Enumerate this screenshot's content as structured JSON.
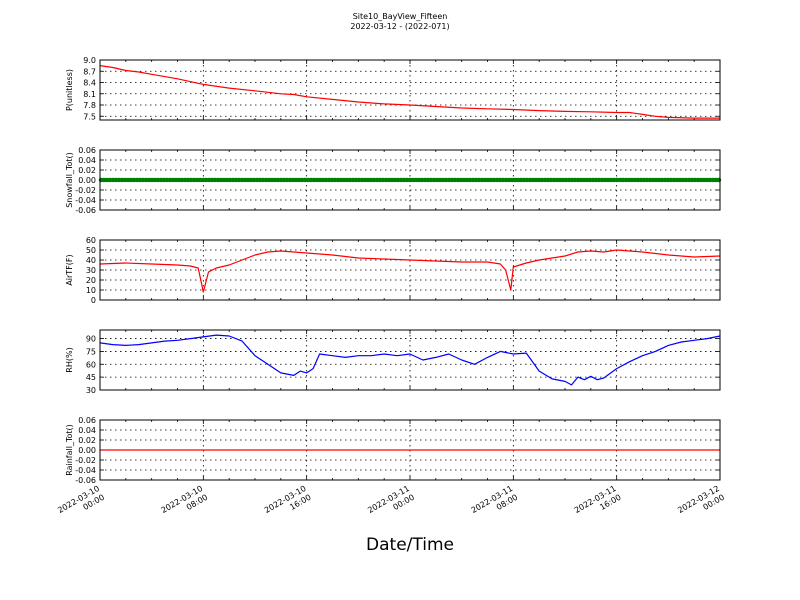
{
  "title_line1": "Site10_BayView_Fifteen",
  "title_line2": "2022-03-12 - (2022-071)",
  "xlabel": "Date/Time",
  "x_ticks": [
    {
      "value": 0,
      "line1": "2022-03-10",
      "line2": "00:00"
    },
    {
      "value": 8,
      "line1": "2022-03-10",
      "line2": "08:00"
    },
    {
      "value": 16,
      "line1": "2022-03-10",
      "line2": "16:00"
    },
    {
      "value": 24,
      "line1": "2022-03-11",
      "line2": "00:00"
    },
    {
      "value": 32,
      "line1": "2022-03-11",
      "line2": "08:00"
    },
    {
      "value": 40,
      "line1": "2022-03-11",
      "line2": "16:00"
    },
    {
      "value": 48,
      "line1": "2022-03-12",
      "line2": "00:00"
    }
  ],
  "chart_data": [
    {
      "type": "line",
      "ylabel": "P(unitless)",
      "ylim": [
        7.4,
        9.0
      ],
      "yticks": [
        "9.0",
        "8.7",
        "8.4",
        "8.1",
        "7.8",
        "7.5"
      ],
      "ytick_values": [
        9.0,
        8.7,
        8.4,
        8.1,
        7.8,
        7.5
      ],
      "grid": true,
      "series": [
        {
          "color": "#ff0000",
          "x": [
            0,
            1,
            2,
            3,
            4,
            6,
            8,
            10,
            12,
            14,
            15,
            16,
            18,
            20,
            22,
            24,
            26,
            28,
            30,
            32,
            34,
            36,
            38,
            40,
            41,
            42,
            43,
            44,
            46,
            48
          ],
          "y": [
            8.85,
            8.8,
            8.72,
            8.68,
            8.62,
            8.5,
            8.35,
            8.25,
            8.18,
            8.1,
            8.08,
            8.02,
            7.95,
            7.88,
            7.83,
            7.8,
            7.76,
            7.72,
            7.7,
            7.68,
            7.65,
            7.63,
            7.62,
            7.6,
            7.6,
            7.55,
            7.5,
            7.47,
            7.45,
            7.45
          ]
        }
      ]
    },
    {
      "type": "line",
      "ylabel": "Snowfall_Tot()",
      "ylim": [
        -0.06,
        0.06
      ],
      "yticks": [
        "0.06",
        "0.04",
        "0.02",
        "0.00",
        "-0.02",
        "-0.04",
        "-0.06"
      ],
      "ytick_values": [
        0.06,
        0.04,
        0.02,
        0.0,
        -0.02,
        -0.04,
        -0.06
      ],
      "grid": true,
      "series": [
        {
          "color": "#008000",
          "marker": true,
          "x": [
            0,
            48
          ],
          "y": [
            0,
            0
          ]
        }
      ]
    },
    {
      "type": "line",
      "ylabel": "AirTF(F)",
      "ylim": [
        0,
        60
      ],
      "yticks": [
        "60",
        "50",
        "40",
        "30",
        "20",
        "10",
        "0"
      ],
      "ytick_values": [
        60,
        50,
        40,
        30,
        20,
        10,
        0
      ],
      "grid": true,
      "series": [
        {
          "color": "#ff0000",
          "x": [
            0,
            2,
            4,
            6,
            7,
            7.6,
            7.8,
            8.0,
            8.4,
            9,
            10,
            11,
            12,
            13,
            14,
            15,
            16,
            18,
            20,
            22,
            24,
            26,
            28,
            30,
            31,
            31.4,
            31.8,
            32,
            33,
            34,
            36,
            37,
            38,
            39,
            40,
            41,
            42,
            44,
            46,
            48
          ],
          "y": [
            36,
            37,
            36,
            35,
            34,
            32,
            20,
            8,
            28,
            32,
            35,
            40,
            45,
            48,
            49,
            48,
            47,
            45,
            42,
            41,
            40,
            39,
            38,
            38,
            36,
            30,
            10,
            33,
            37,
            40,
            44,
            48,
            49,
            48,
            50,
            49,
            48,
            45,
            43,
            44
          ]
        }
      ]
    },
    {
      "type": "line",
      "ylabel": "RH(%)",
      "ylim": [
        30,
        100
      ],
      "yticks": [
        "90",
        "75",
        "60",
        "45",
        "30"
      ],
      "ytick_values": [
        90,
        75,
        60,
        45,
        30
      ],
      "grid": true,
      "series": [
        {
          "color": "#0000ff",
          "x": [
            0,
            1,
            2,
            3,
            4,
            5,
            6,
            7,
            8,
            9,
            10,
            11,
            12,
            13,
            14,
            15,
            15.5,
            16,
            16.5,
            17,
            18,
            19,
            20,
            21,
            22,
            23,
            24,
            25,
            26,
            27,
            28,
            29,
            30,
            31,
            32,
            33,
            34,
            35,
            36,
            36.5,
            37,
            37.5,
            38,
            38.5,
            39,
            40,
            41,
            42,
            43,
            44,
            45,
            46,
            47,
            48
          ],
          "y": [
            85,
            83,
            82,
            83,
            85,
            87,
            88,
            90,
            92,
            94,
            93,
            87,
            70,
            60,
            50,
            47,
            52,
            50,
            55,
            72,
            70,
            68,
            70,
            70,
            72,
            70,
            72,
            65,
            68,
            72,
            65,
            60,
            68,
            75,
            72,
            73,
            52,
            43,
            40,
            36,
            45,
            42,
            46,
            42,
            44,
            55,
            63,
            70,
            75,
            82,
            86,
            88,
            90,
            93
          ]
        }
      ]
    },
    {
      "type": "line",
      "ylabel": "Rainfall_Tot()",
      "ylim": [
        -0.06,
        0.06
      ],
      "yticks": [
        "0.06",
        "0.04",
        "0.02",
        "0.00",
        "-0.02",
        "-0.04",
        "-0.06"
      ],
      "ytick_values": [
        0.06,
        0.04,
        0.02,
        0.0,
        -0.02,
        -0.04,
        -0.06
      ],
      "grid": true,
      "series": [
        {
          "color": "#ff0000",
          "x": [
            0,
            48
          ],
          "y": [
            0,
            0
          ]
        }
      ]
    }
  ]
}
